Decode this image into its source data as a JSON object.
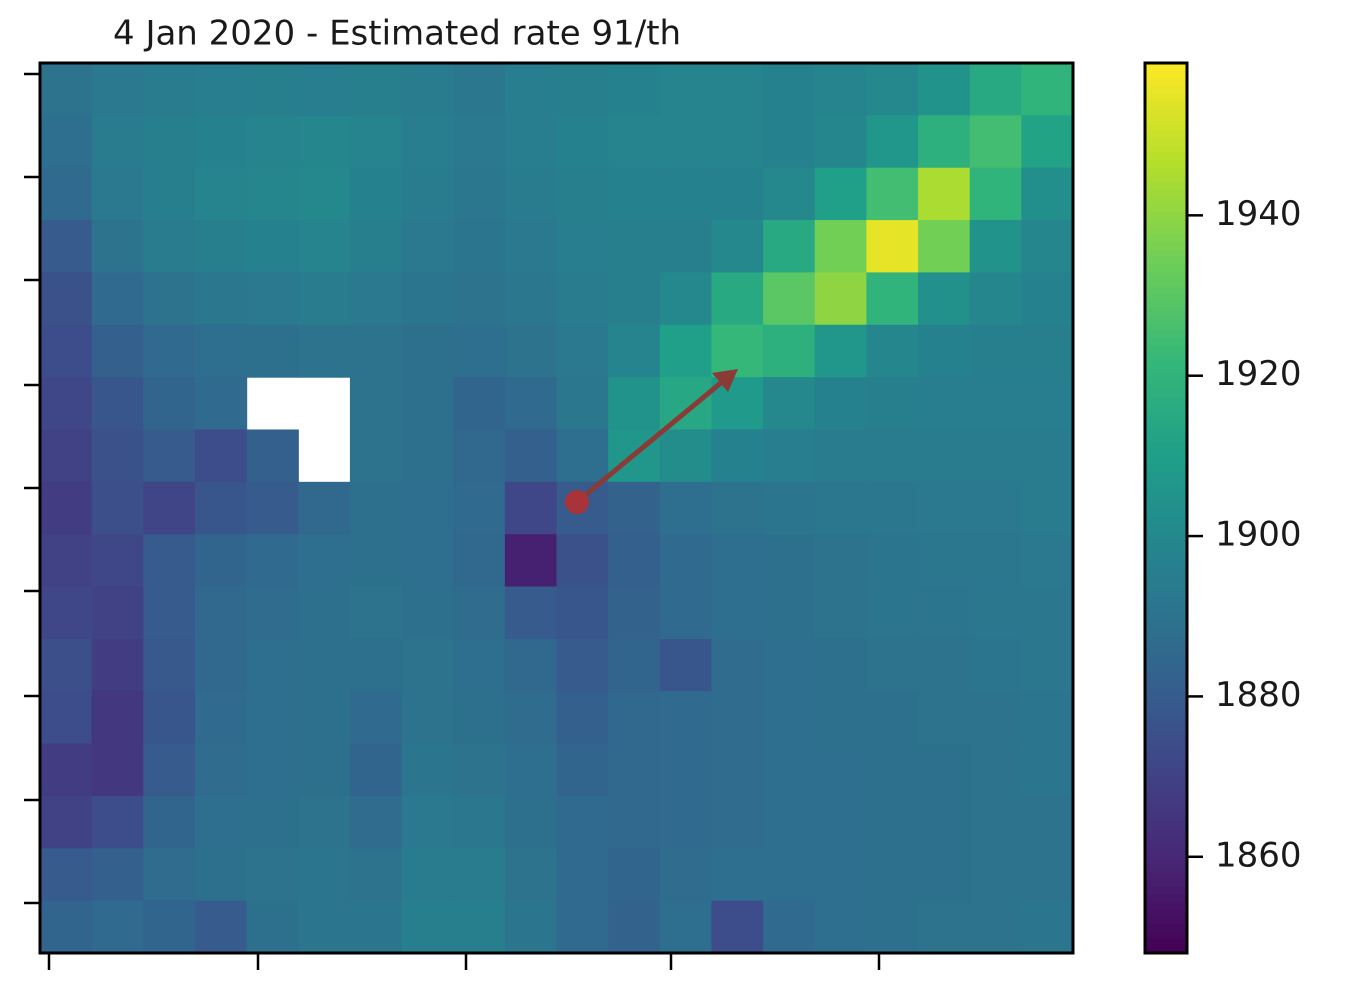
{
  "chart_data": {
    "type": "heatmap",
    "title": "4 Jan 2020 - Estimated rate 91/th",
    "colormap": "viridis",
    "clim": [
      1848,
      1959
    ],
    "cticks": [
      1860,
      1880,
      1900,
      1920,
      1940
    ],
    "values": [
      [
        1890,
        1893,
        1894,
        1895,
        1896,
        1895,
        1896,
        1894,
        1892,
        1895,
        1896,
        1897,
        1898,
        1898,
        1897,
        1898,
        1900,
        1905,
        1915,
        1920
      ],
      [
        1888,
        1894,
        1896,
        1897,
        1898,
        1899,
        1898,
        1895,
        1893,
        1895,
        1897,
        1898,
        1898,
        1898,
        1897,
        1899,
        1906,
        1918,
        1925,
        1912
      ],
      [
        1886,
        1893,
        1896,
        1898,
        1899,
        1900,
        1897,
        1894,
        1892,
        1894,
        1896,
        1897,
        1897,
        1897,
        1900,
        1910,
        1925,
        1945,
        1920,
        1903
      ],
      [
        1880,
        1890,
        1894,
        1896,
        1897,
        1898,
        1896,
        1893,
        1891,
        1893,
        1895,
        1896,
        1896,
        1900,
        1915,
        1935,
        1955,
        1935,
        1905,
        1899
      ],
      [
        1876,
        1886,
        1890,
        1892,
        1893,
        1894,
        1893,
        1891,
        1890,
        1892,
        1894,
        1896,
        1900,
        1915,
        1930,
        1940,
        1920,
        1904,
        1899,
        1897
      ],
      [
        1874,
        1882,
        1886,
        1888,
        1889,
        1890,
        1890,
        1889,
        1888,
        1890,
        1893,
        1898,
        1910,
        1922,
        1918,
        1906,
        1899,
        1897,
        1896,
        1896
      ],
      [
        1872,
        1878,
        1884,
        1886,
        null,
        null,
        1890,
        1889,
        1884,
        1886,
        1892,
        1905,
        1914,
        1908,
        1900,
        1897,
        1896,
        1895,
        1895,
        1895
      ],
      [
        1870,
        1876,
        1880,
        1874,
        1882,
        null,
        1890,
        1889,
        1885,
        1882,
        1888,
        1906,
        1902,
        1897,
        1895,
        1894,
        1894,
        1894,
        1894,
        1894
      ],
      [
        1868,
        1875,
        1871,
        1878,
        1880,
        1885,
        1889,
        1888,
        1886,
        1872,
        1880,
        1883,
        1888,
        1890,
        1891,
        1892,
        1892,
        1893,
        1893,
        1894
      ],
      [
        1870,
        1872,
        1880,
        1884,
        1886,
        1888,
        1889,
        1888,
        1885,
        1858,
        1876,
        1882,
        1886,
        1888,
        1889,
        1890,
        1891,
        1892,
        1892,
        1893
      ],
      [
        1872,
        1870,
        1880,
        1885,
        1887,
        1889,
        1890,
        1889,
        1887,
        1880,
        1878,
        1883,
        1886,
        1888,
        1889,
        1890,
        1891,
        1891,
        1892,
        1892
      ],
      [
        1875,
        1868,
        1879,
        1885,
        1888,
        1889,
        1889,
        1890,
        1888,
        1885,
        1880,
        1884,
        1878,
        1887,
        1888,
        1889,
        1890,
        1890,
        1891,
        1892
      ],
      [
        1874,
        1866,
        1878,
        1886,
        1888,
        1889,
        1886,
        1890,
        1889,
        1887,
        1882,
        1885,
        1886,
        1887,
        1888,
        1889,
        1889,
        1890,
        1890,
        1891
      ],
      [
        1868,
        1866,
        1880,
        1887,
        1888,
        1889,
        1884,
        1891,
        1890,
        1888,
        1884,
        1885,
        1886,
        1887,
        1888,
        1888,
        1889,
        1889,
        1890,
        1891
      ],
      [
        1870,
        1874,
        1884,
        1888,
        1889,
        1890,
        1887,
        1893,
        1892,
        1889,
        1886,
        1885,
        1886,
        1887,
        1888,
        1888,
        1889,
        1889,
        1890,
        1890
      ],
      [
        1880,
        1882,
        1887,
        1889,
        1890,
        1891,
        1890,
        1894,
        1894,
        1890,
        1886,
        1884,
        1887,
        1888,
        1888,
        1888,
        1889,
        1889,
        1890,
        1890
      ],
      [
        1884,
        1886,
        1884,
        1880,
        1889,
        1891,
        1891,
        1896,
        1896,
        1891,
        1886,
        1883,
        1888,
        1874,
        1886,
        1888,
        1889,
        1890,
        1890,
        1891
      ]
    ]
  }
}
